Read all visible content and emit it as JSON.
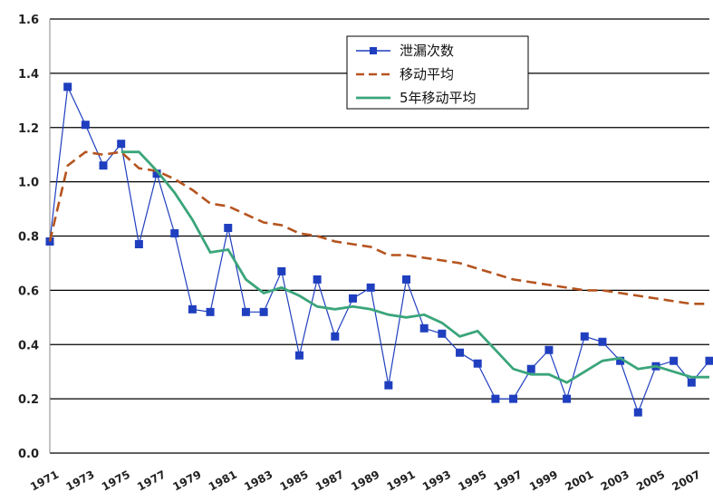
{
  "chart_data": {
    "type": "line",
    "title": "",
    "xlabel": "",
    "ylabel": "",
    "ylim": [
      0,
      1.6
    ],
    "yticks": [
      "0.0",
      "0.2",
      "0.4",
      "0.6",
      "0.8",
      "1.0",
      "1.2",
      "1.4",
      "1.6"
    ],
    "xtick_labels": [
      "1971",
      "1973",
      "1975",
      "1977",
      "1979",
      "1981",
      "1983",
      "1985",
      "1987",
      "1989",
      "1991",
      "1993",
      "1995",
      "1997",
      "1999",
      "2001",
      "2003",
      "2005",
      "2007"
    ],
    "grid": "horizontal",
    "legend_position": "top-center",
    "x": [
      1971,
      1972,
      1973,
      1974,
      1975,
      1976,
      1977,
      1978,
      1979,
      1980,
      1981,
      1982,
      1983,
      1984,
      1985,
      1986,
      1987,
      1988,
      1989,
      1990,
      1991,
      1992,
      1993,
      1994,
      1995,
      1996,
      1997,
      1998,
      1999,
      2000,
      2001,
      2002,
      2003,
      2004,
      2005,
      2006,
      2007,
      2008
    ],
    "series": [
      {
        "name": "泄漏次数",
        "color": "#1f3fbf",
        "style": "line-square-markers",
        "values": [
          0.78,
          1.35,
          1.21,
          1.06,
          1.14,
          0.77,
          1.03,
          0.81,
          0.53,
          0.52,
          0.83,
          0.52,
          0.52,
          0.67,
          0.36,
          0.64,
          0.43,
          0.57,
          0.61,
          0.25,
          0.64,
          0.46,
          0.44,
          0.37,
          0.33,
          0.2,
          0.2,
          0.31,
          0.38,
          0.2,
          0.43,
          0.41,
          0.34,
          0.15,
          0.32,
          0.34,
          0.26,
          0.34
        ]
      },
      {
        "name": "移动平均",
        "color": "#b5541f",
        "style": "dashed",
        "values": [
          0.78,
          1.06,
          1.11,
          1.1,
          1.11,
          1.05,
          1.04,
          1.01,
          0.97,
          0.92,
          0.91,
          0.88,
          0.85,
          0.84,
          0.81,
          0.8,
          0.78,
          0.77,
          0.76,
          0.73,
          0.73,
          0.72,
          0.71,
          0.7,
          0.68,
          0.66,
          0.64,
          0.63,
          0.62,
          0.61,
          0.6,
          0.6,
          0.59,
          0.58,
          0.57,
          0.56,
          0.55,
          0.55
        ]
      },
      {
        "name": "5年移动平均",
        "color": "#3aa57a",
        "style": "solid",
        "values": [
          null,
          null,
          null,
          null,
          1.11,
          1.11,
          1.04,
          0.96,
          0.86,
          0.74,
          0.75,
          0.64,
          0.59,
          0.61,
          0.58,
          0.54,
          0.53,
          0.54,
          0.53,
          0.51,
          0.5,
          0.51,
          0.48,
          0.43,
          0.45,
          0.38,
          0.31,
          0.29,
          0.29,
          0.26,
          0.3,
          0.34,
          0.35,
          0.31,
          0.32,
          0.3,
          0.28,
          0.28
        ]
      }
    ]
  }
}
